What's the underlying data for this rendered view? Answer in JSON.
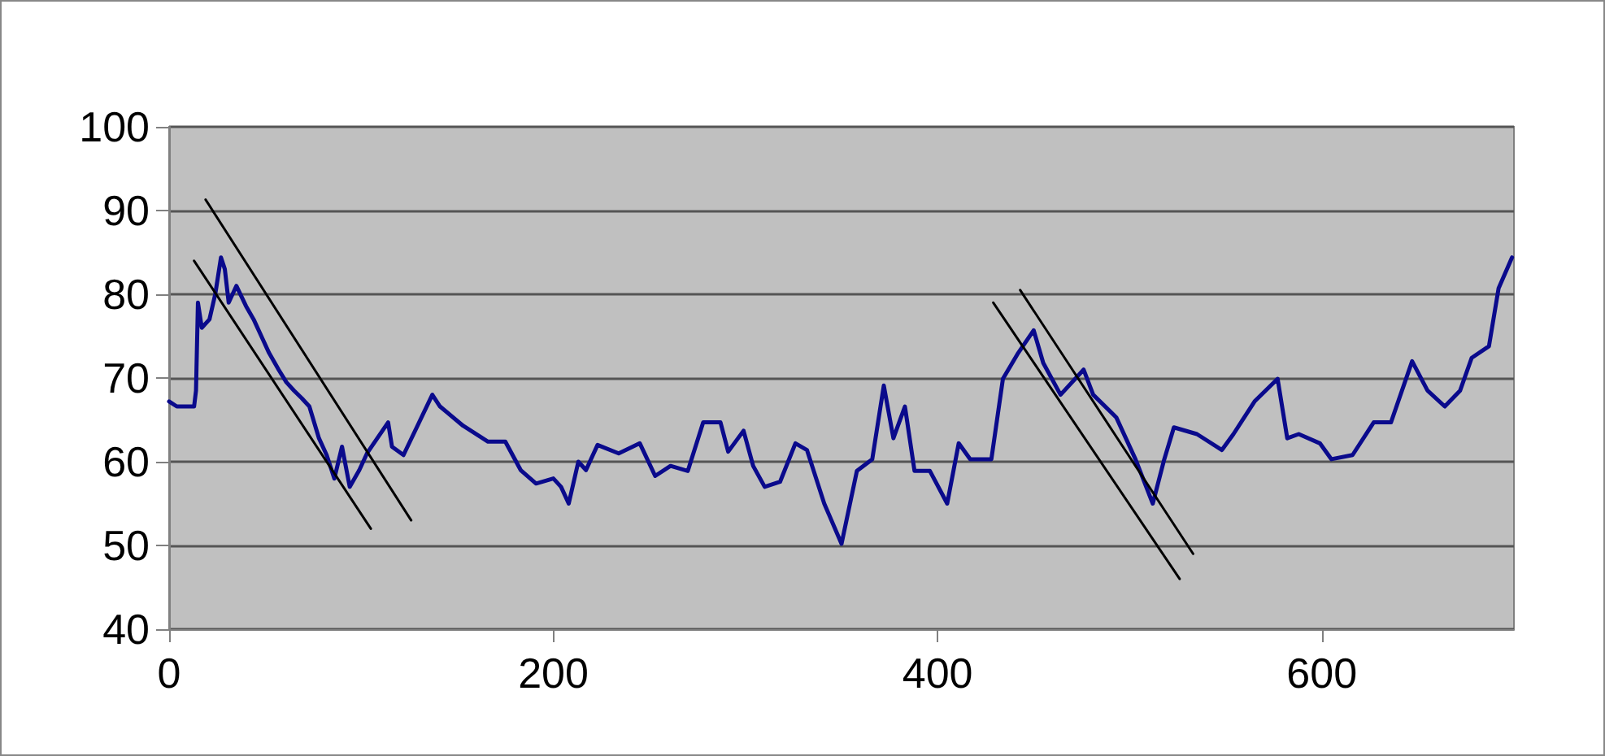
{
  "chart_data": {
    "type": "line",
    "marker": "none",
    "grid": "y",
    "xlim": [
      0,
      700
    ],
    "xticks": [
      0,
      200,
      400,
      600
    ],
    "ylim": [
      40,
      100
    ],
    "yticks": [
      40,
      50,
      60,
      70,
      80,
      90,
      100
    ],
    "series": [
      {
        "color": "#0a0a8c",
        "x": [
          0,
          4,
          13,
          14,
          15,
          17,
          21,
          24,
          27,
          29,
          31,
          35,
          40,
          44,
          48,
          52,
          57,
          61,
          65,
          69,
          73,
          78,
          82,
          86,
          90,
          94,
          99,
          103,
          114,
          116,
          122,
          137,
          141,
          153,
          166,
          175,
          183,
          191,
          200,
          204,
          208,
          213,
          217,
          223,
          234,
          245,
          253,
          261,
          270,
          278,
          287,
          291,
          299,
          304,
          310,
          318,
          326,
          332,
          341,
          350,
          358,
          366,
          372,
          377,
          383,
          388,
          396,
          405,
          411,
          417,
          428,
          434,
          442,
          450,
          455,
          464,
          476,
          481,
          493,
          503,
          512,
          518,
          523,
          535,
          548,
          554,
          565,
          577,
          582,
          588,
          599,
          605,
          616,
          627,
          636,
          647,
          655,
          664,
          672,
          678,
          687,
          692,
          699
        ],
        "values": [
          67.2,
          66.6,
          66.6,
          68.5,
          79,
          76,
          77,
          80,
          84.4,
          83,
          79,
          81,
          78.6,
          77,
          75,
          73,
          71,
          69.5,
          68.5,
          67.6,
          66.6,
          62.8,
          60.8,
          58,
          61.8,
          57,
          59,
          61,
          64.7,
          61.8,
          60.8,
          68,
          66.6,
          64.3,
          62.4,
          62.4,
          59,
          57.4,
          58,
          57,
          55,
          60,
          59,
          62,
          61,
          62.2,
          58.3,
          59.5,
          58.9,
          64.7,
          64.7,
          61.2,
          63.7,
          59.5,
          57,
          57.6,
          62.2,
          61.4,
          55,
          50.2,
          58.9,
          60.3,
          69.1,
          62.8,
          66.6,
          58.9,
          58.9,
          55,
          62.2,
          60.3,
          60.3,
          69.9,
          73,
          75.7,
          71.8,
          68,
          71,
          68,
          65.3,
          60.3,
          55,
          60.3,
          64.1,
          63.3,
          61.4,
          63.3,
          67.2,
          69.9,
          62.8,
          63.3,
          62.2,
          60.3,
          60.8,
          64.7,
          64.7,
          72,
          68.5,
          66.6,
          68.5,
          72.4,
          73.8,
          80.7,
          84.4
        ]
      },
      {
        "color": "#000000",
        "x": [
          13,
          105
        ],
        "values": [
          84,
          52
        ]
      },
      {
        "color": "#000000",
        "x": [
          19,
          126
        ],
        "values": [
          91.3,
          53
        ]
      },
      {
        "color": "#000000",
        "x": [
          429,
          526
        ],
        "values": [
          79,
          46
        ]
      },
      {
        "color": "#000000",
        "x": [
          443,
          533
        ],
        "values": [
          80.5,
          49
        ]
      }
    ]
  }
}
